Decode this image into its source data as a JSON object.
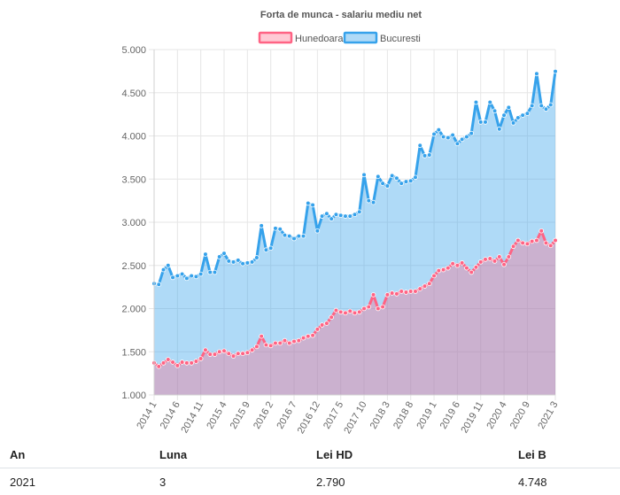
{
  "chart_data": {
    "type": "area",
    "title": "Forta de munca - salariu mediu net",
    "ylim": [
      1000,
      5000
    ],
    "yticks": [
      "1.000",
      "1.500",
      "2.000",
      "2.500",
      "3.000",
      "3.500",
      "4.000",
      "4.500",
      "5.000"
    ],
    "xticks": [
      "2014 1",
      "2014 6",
      "2014 11",
      "2015 4",
      "2015 9",
      "2016 2",
      "2016 7",
      "2016 12",
      "2017 5",
      "2017 10",
      "2018 3",
      "2018 8",
      "2019 1",
      "2019 6",
      "2019 11",
      "2020 4",
      "2020 9",
      "2021 3"
    ],
    "x_start": "2014 1",
    "x_end": "2021 3",
    "grid": true,
    "legend": "top",
    "series": [
      {
        "name": "Hunedoara",
        "color": "#ff6384",
        "fill": "rgba(255, 99, 132, 0.35)",
        "values": [
          1370,
          1330,
          1370,
          1410,
          1380,
          1340,
          1380,
          1370,
          1370,
          1390,
          1420,
          1520,
          1470,
          1470,
          1500,
          1510,
          1480,
          1450,
          1480,
          1480,
          1490,
          1520,
          1560,
          1680,
          1580,
          1570,
          1600,
          1600,
          1630,
          1600,
          1620,
          1630,
          1660,
          1680,
          1690,
          1760,
          1810,
          1830,
          1900,
          1980,
          1960,
          1950,
          1970,
          1950,
          1960,
          2000,
          2020,
          2160,
          2000,
          2020,
          2160,
          2180,
          2170,
          2200,
          2190,
          2200,
          2200,
          2230,
          2260,
          2290,
          2380,
          2440,
          2450,
          2470,
          2520,
          2500,
          2530,
          2470,
          2420,
          2480,
          2540,
          2570,
          2580,
          2550,
          2600,
          2510,
          2600,
          2720,
          2790,
          2760,
          2750,
          2780,
          2790,
          2900,
          2760,
          2730,
          2790
        ]
      },
      {
        "name": "Bucuresti",
        "color": "#36a2eb",
        "fill": "rgba(54, 162, 235, 0.4)",
        "values": [
          2290,
          2280,
          2450,
          2500,
          2360,
          2380,
          2400,
          2350,
          2380,
          2370,
          2400,
          2630,
          2420,
          2420,
          2600,
          2640,
          2550,
          2540,
          2560,
          2520,
          2530,
          2540,
          2590,
          2960,
          2680,
          2700,
          2930,
          2920,
          2850,
          2840,
          2810,
          2840,
          2840,
          3220,
          3200,
          2900,
          3070,
          3100,
          3040,
          3090,
          3080,
          3070,
          3070,
          3090,
          3120,
          3550,
          3250,
          3230,
          3530,
          3450,
          3420,
          3540,
          3510,
          3450,
          3470,
          3480,
          3520,
          3890,
          3770,
          3780,
          4020,
          4070,
          3990,
          3980,
          4010,
          3910,
          3960,
          3990,
          4030,
          4390,
          4160,
          4160,
          4390,
          4290,
          4080,
          4240,
          4330,
          4150,
          4210,
          4240,
          4260,
          4350,
          4720,
          4350,
          4310,
          4360,
          4748
        ]
      }
    ]
  },
  "table": {
    "headers": {
      "an": "An",
      "luna": "Luna",
      "lei_hd": "Lei HD",
      "lei_b": "Lei B"
    },
    "row": {
      "an": "2021",
      "luna": "3",
      "lei_hd": "2.790",
      "lei_b": "4.748"
    }
  }
}
